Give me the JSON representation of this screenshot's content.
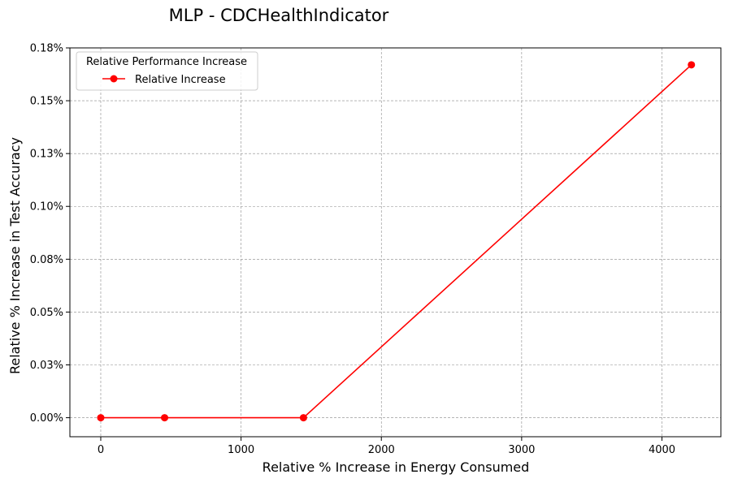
{
  "chart_data": {
    "type": "line",
    "title": "MLP - CDCHealthIndicator",
    "xlabel": "Relative % Increase in Energy Consumed",
    "ylabel": "Relative % Increase in Test Accuracy",
    "xlim": [
      -220,
      4420
    ],
    "ylim": [
      -0.009,
      0.175
    ],
    "xticks": [
      0,
      1000,
      2000,
      3000,
      4000
    ],
    "xtick_labels": [
      "0",
      "1000",
      "2000",
      "3000",
      "4000"
    ],
    "yticks": [
      0.0,
      0.025,
      0.05,
      0.075,
      0.1,
      0.125,
      0.15,
      0.175
    ],
    "ytick_labels": [
      "0.00%",
      "0.03%",
      "0.05%",
      "0.08%",
      "0.10%",
      "0.13%",
      "0.15%",
      "0.18%"
    ],
    "grid": true,
    "legend": {
      "title": "Relative Performance Increase",
      "placement": "top-left"
    },
    "series": [
      {
        "name": "Relative Increase",
        "color": "#ff0000",
        "marker": "circle",
        "x": [
          0,
          455,
          1445,
          4210
        ],
        "y": [
          0.0,
          0.0,
          0.0,
          0.167
        ]
      }
    ]
  }
}
